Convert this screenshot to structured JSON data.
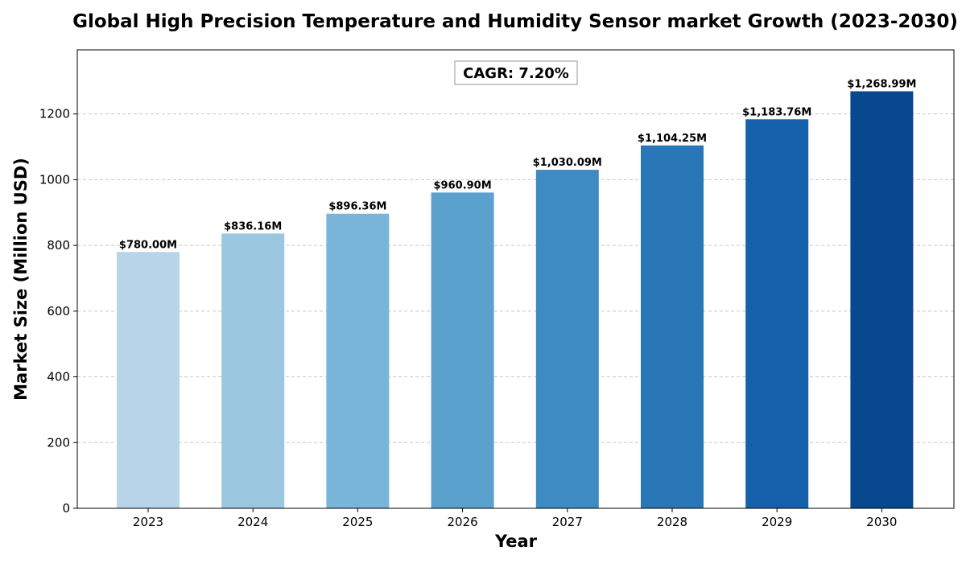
{
  "chart_data": {
    "type": "bar",
    "title": "Global High Precision Temperature and Humidity Sensor market Growth (2023-2030)",
    "xlabel": "Year",
    "ylabel": "Market Size (Million USD)",
    "categories": [
      "2023",
      "2024",
      "2025",
      "2026",
      "2027",
      "2028",
      "2029",
      "2030"
    ],
    "values": [
      780.0,
      836.16,
      896.36,
      960.9,
      1030.09,
      1104.25,
      1183.76,
      1268.99
    ],
    "data_labels": [
      "$780.00M",
      "$836.16M",
      "$896.36M",
      "$960.90M",
      "$1,030.09M",
      "$1,104.25M",
      "$1,183.76M",
      "$1,268.99M"
    ],
    "colors": [
      "#b8d4e9",
      "#9ac7df",
      "#78b5d8",
      "#5aa1ce",
      "#3e8bc4",
      "#2a77b8",
      "#1460aa",
      "#08488e"
    ],
    "ylim": [
      0,
      1395
    ],
    "yticks": [
      0,
      200,
      400,
      600,
      800,
      1000,
      1200
    ],
    "grid": "y-dashed",
    "annotation": "CAGR: 7.20%"
  }
}
